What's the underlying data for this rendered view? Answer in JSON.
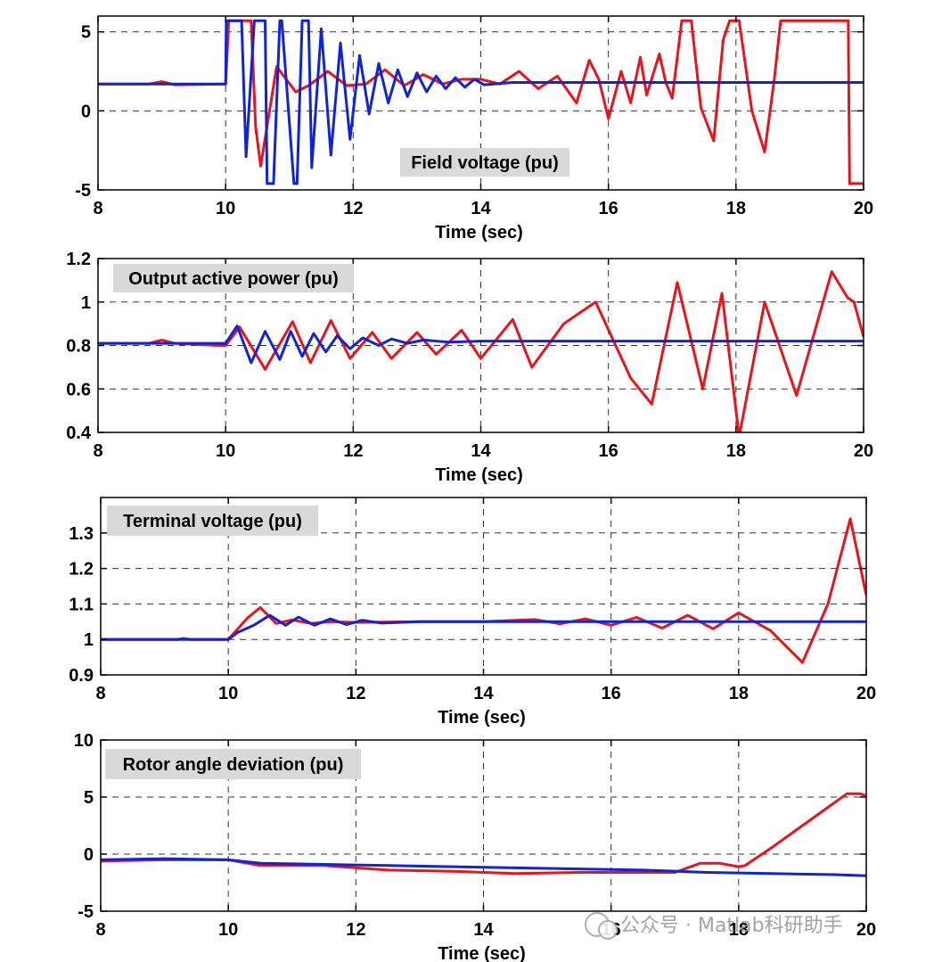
{
  "colors": {
    "red": "#e8141b",
    "blue": "#1024d6",
    "title_bg": "#d9d9d9",
    "grid": "#333333"
  },
  "watermark": "公众号 · Matlab科研助手",
  "chart_data": [
    {
      "type": "line",
      "title": "Field voltage (pu)",
      "xlabel": "Time (sec)",
      "ylabel": "",
      "xlim": [
        8,
        20
      ],
      "ylim": [
        -5,
        6
      ],
      "xticks": [
        8,
        10,
        12,
        14,
        16,
        18,
        20
      ],
      "yticks": [
        -5,
        0,
        5
      ],
      "grid": true,
      "series": [
        {
          "name": "red",
          "color": "#e8141b",
          "x": [
            8,
            8.8,
            9.0,
            9.2,
            10.0,
            10.05,
            10.4,
            10.47,
            10.55,
            10.8,
            11.1,
            11.3,
            11.6,
            11.9,
            12.2,
            12.5,
            12.8,
            13.1,
            13.4,
            13.7,
            14.0,
            14.3,
            14.6,
            14.9,
            15.2,
            15.5,
            15.7,
            15.85,
            16.0,
            16.2,
            16.35,
            16.5,
            16.6,
            16.8,
            16.9,
            17.0,
            17.15,
            17.3,
            17.45,
            17.65,
            17.8,
            17.9,
            18.05,
            18.25,
            18.45,
            18.6,
            18.7,
            19.3,
            19.76,
            19.78,
            20
          ],
          "y": [
            1.7,
            1.7,
            1.85,
            1.65,
            1.7,
            5.7,
            5.7,
            -1.0,
            -3.5,
            2.8,
            1.2,
            1.6,
            2.5,
            1.6,
            1.7,
            2.6,
            1.6,
            2.3,
            1.7,
            2.0,
            2.0,
            1.7,
            2.5,
            1.4,
            2.2,
            0.5,
            3.2,
            2.0,
            -0.5,
            2.5,
            0.5,
            3.4,
            1.0,
            3.6,
            1.8,
            0.8,
            5.7,
            5.7,
            0.2,
            -1.9,
            4.5,
            5.7,
            5.7,
            0.0,
            -2.6,
            2.0,
            5.7,
            5.7,
            5.7,
            -4.6,
            -4.6
          ]
        },
        {
          "name": "blue",
          "color": "#1024d6",
          "x": [
            8,
            9.8,
            10.0,
            10.01,
            10.25,
            10.32,
            10.45,
            10.62,
            10.65,
            10.75,
            10.85,
            10.88,
            11.07,
            11.12,
            11.2,
            11.3,
            11.35,
            11.5,
            11.65,
            11.8,
            11.95,
            12.1,
            12.25,
            12.4,
            12.55,
            12.7,
            12.85,
            13.0,
            13.15,
            13.3,
            13.45,
            13.6,
            13.75,
            13.9,
            14.05,
            14.5,
            20
          ],
          "y": [
            1.7,
            1.7,
            1.7,
            5.7,
            5.7,
            -2.9,
            5.7,
            5.7,
            -4.6,
            -4.6,
            5.7,
            5.7,
            -4.6,
            -4.6,
            5.7,
            5.7,
            -3.6,
            5.2,
            -2.8,
            4.3,
            -1.8,
            3.5,
            -0.2,
            3.0,
            0.5,
            2.6,
            0.9,
            2.4,
            1.2,
            2.2,
            1.4,
            2.1,
            1.5,
            2.0,
            1.65,
            1.8,
            1.8
          ]
        }
      ]
    },
    {
      "type": "line",
      "title": "Output active power (pu)",
      "xlabel": "Time (sec)",
      "ylabel": "",
      "xlim": [
        8,
        20
      ],
      "ylim": [
        0.4,
        1.2
      ],
      "xticks": [
        8,
        10,
        12,
        14,
        16,
        18,
        20
      ],
      "yticks": [
        0.4,
        0.6,
        0.8,
        1.0,
        1.2
      ],
      "yticklabels": [
        "0.4",
        "0.6",
        "0.8",
        "1",
        "1.2"
      ],
      "grid": true,
      "series": [
        {
          "name": "red",
          "color": "#e8141b",
          "x": [
            8,
            8.8,
            9.0,
            9.2,
            9.9,
            10.0,
            10.22,
            10.62,
            11.05,
            11.33,
            11.65,
            11.95,
            12.3,
            12.6,
            13.0,
            13.3,
            13.7,
            14.0,
            14.5,
            14.8,
            15.3,
            15.8,
            16.35,
            16.68,
            17.08,
            17.48,
            17.78,
            18.05,
            18.45,
            18.95,
            19.5,
            19.75,
            19.85,
            20
          ],
          "y": [
            0.81,
            0.81,
            0.825,
            0.81,
            0.8,
            0.8,
            0.885,
            0.69,
            0.91,
            0.72,
            0.915,
            0.74,
            0.86,
            0.74,
            0.86,
            0.76,
            0.87,
            0.74,
            0.92,
            0.7,
            0.9,
            1.0,
            0.65,
            0.53,
            1.09,
            0.6,
            1.04,
            0.38,
            1.0,
            0.57,
            1.14,
            1.02,
            1.0,
            0.84
          ]
        },
        {
          "name": "blue",
          "color": "#1024d6",
          "x": [
            8,
            9.9,
            10.0,
            10.18,
            10.4,
            10.62,
            10.85,
            11.02,
            11.2,
            11.38,
            11.57,
            11.75,
            11.95,
            12.15,
            12.4,
            12.6,
            12.85,
            13.1,
            13.5,
            14.0,
            20
          ],
          "y": [
            0.81,
            0.81,
            0.81,
            0.89,
            0.72,
            0.865,
            0.735,
            0.865,
            0.75,
            0.855,
            0.77,
            0.845,
            0.785,
            0.835,
            0.8,
            0.83,
            0.81,
            0.825,
            0.815,
            0.82,
            0.82
          ]
        }
      ]
    },
    {
      "type": "line",
      "title": "Terminal voltage (pu)",
      "xlabel": "Time (sec)",
      "ylabel": "",
      "xlim": [
        8,
        20
      ],
      "ylim": [
        0.9,
        1.4
      ],
      "xticks": [
        8,
        10,
        12,
        14,
        16,
        18,
        20
      ],
      "yticks": [
        0.9,
        1.0,
        1.1,
        1.2,
        1.3
      ],
      "yticklabels": [
        "0.9",
        "1",
        "1.1",
        "1.2",
        "1.3"
      ],
      "grid": true,
      "series": [
        {
          "name": "red",
          "color": "#e8141b",
          "x": [
            8,
            9.2,
            9.3,
            9.4,
            10.0,
            10.1,
            10.3,
            10.5,
            10.75,
            11.0,
            11.3,
            11.6,
            12.0,
            13.0,
            14.0,
            14.8,
            15.2,
            15.6,
            16.0,
            16.4,
            16.8,
            17.2,
            17.6,
            18.0,
            18.5,
            19.0,
            19.4,
            19.75,
            20
          ],
          "y": [
            1.0,
            1.0,
            1.003,
            1.0,
            1.0,
            1.02,
            1.06,
            1.09,
            1.045,
            1.055,
            1.045,
            1.05,
            1.048,
            1.05,
            1.05,
            1.056,
            1.044,
            1.058,
            1.04,
            1.062,
            1.032,
            1.068,
            1.03,
            1.075,
            1.025,
            0.935,
            1.1,
            1.34,
            1.125
          ]
        },
        {
          "name": "blue",
          "color": "#1024d6",
          "x": [
            8,
            10.0,
            10.15,
            10.4,
            10.65,
            10.9,
            11.1,
            11.35,
            11.6,
            11.85,
            12.1,
            12.4,
            13.0,
            20
          ],
          "y": [
            1.0,
            1.0,
            1.02,
            1.04,
            1.068,
            1.04,
            1.063,
            1.04,
            1.058,
            1.042,
            1.054,
            1.046,
            1.05,
            1.05
          ]
        }
      ]
    },
    {
      "type": "line",
      "title": "Rotor angle deviation (pu)",
      "xlabel": "Time (sec)",
      "ylabel": "",
      "xlim": [
        8,
        20
      ],
      "ylim": [
        -5,
        10
      ],
      "xticks": [
        8,
        10,
        12,
        14,
        16,
        18,
        20
      ],
      "yticks": [
        -5,
        0,
        5,
        10
      ],
      "grid": true,
      "series": [
        {
          "name": "red",
          "color": "#e8141b",
          "x": [
            8,
            9.0,
            10.0,
            10.5,
            11.5,
            12.5,
            13.5,
            14.5,
            15.5,
            16.5,
            17.0,
            17.4,
            17.7,
            18.0,
            18.1,
            18.5,
            19.0,
            19.5,
            19.7,
            19.9,
            20
          ],
          "y": [
            -0.6,
            -0.5,
            -0.5,
            -1.0,
            -1.0,
            -1.4,
            -1.5,
            -1.7,
            -1.6,
            -1.6,
            -1.6,
            -0.8,
            -0.8,
            -1.1,
            -1.0,
            0.5,
            2.5,
            4.5,
            5.3,
            5.3,
            5.1
          ]
        },
        {
          "name": "blue",
          "color": "#1024d6",
          "x": [
            8,
            9.0,
            10.0,
            10.5,
            11.5,
            12.5,
            13.5,
            14.5,
            15.5,
            16.5,
            17.5,
            18.5,
            19.5,
            20
          ],
          "y": [
            -0.5,
            -0.4,
            -0.5,
            -0.8,
            -0.9,
            -1.0,
            -1.1,
            -1.2,
            -1.3,
            -1.4,
            -1.6,
            -1.7,
            -1.8,
            -1.9
          ]
        }
      ]
    }
  ]
}
